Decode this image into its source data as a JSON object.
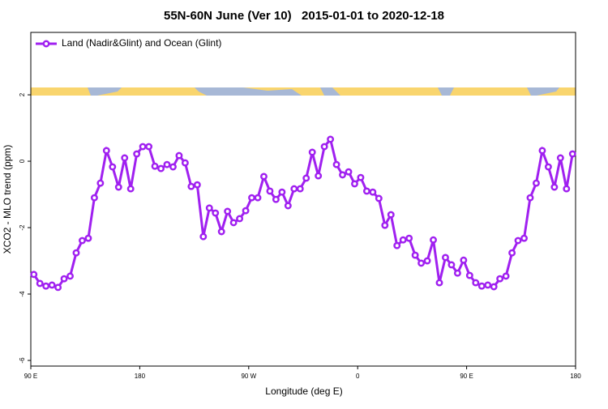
{
  "chart_data": {
    "type": "line",
    "title": "55N-60N June (Ver 10)   2015-01-01 to 2020-12-18",
    "x_label": "Longitude (deg E)",
    "y_label": "XCO2 - MLO trend (ppm)",
    "legend_position": "top-left",
    "xlim": [
      90,
      540
    ],
    "ylim": [
      -6.17,
      3.88
    ],
    "xticks": [
      {
        "value": 90,
        "label": "90 E"
      },
      180,
      {
        "value": 270,
        "label": "90 W"
      },
      {
        "value": 360,
        "label": "0"
      },
      {
        "value": 450,
        "label": "90 E"
      },
      {
        "value": 540,
        "label": "180"
      }
    ],
    "yticks": [
      -6,
      -4,
      -2,
      0,
      2
    ],
    "x": [
      92.5,
      97.5,
      102.5,
      107.5,
      112.5,
      117.5,
      122.5,
      127.5,
      132.5,
      137.5,
      142.5,
      147.5,
      152.5,
      157.5,
      162.5,
      167.5,
      172.5,
      177.5,
      182.5,
      187.5,
      192.5,
      197.5,
      202.5,
      207.5,
      212.5,
      217.5,
      222.5,
      227.5,
      232.5,
      237.5,
      242.5,
      247.5,
      252.5,
      257.5,
      262.5,
      267.5,
      272.5,
      277.5,
      282.5,
      287.5,
      292.5,
      297.5,
      302.5,
      307.5,
      312.5,
      317.5,
      322.5,
      327.5,
      332.5,
      337.5,
      342.5,
      347.5,
      352.5,
      357.5,
      362.5,
      367.5,
      372.5,
      377.5,
      382.5,
      387.5,
      392.5,
      397.5,
      402.5,
      407.5,
      412.5,
      417.5,
      422.5,
      427.5,
      432.5,
      437.5,
      442.5,
      447.5,
      452.5,
      457.5,
      462.5,
      467.5,
      472.5,
      477.5,
      482.5,
      487.5,
      492.5,
      497.5,
      502.5,
      507.5,
      512.5,
      517.5,
      522.5,
      527.5,
      532.5,
      537.5
    ],
    "series": [
      {
        "name": "Land (Nadir&Glint) and Ocean (Glint)",
        "color": "#a020f0",
        "values": [
          -3.41,
          -3.68,
          -3.76,
          -3.73,
          -3.8,
          -3.54,
          -3.46,
          -2.76,
          -2.39,
          -2.32,
          -1.1,
          -0.66,
          0.32,
          -0.17,
          -0.78,
          0.1,
          -0.83,
          0.22,
          0.44,
          0.44,
          -0.15,
          -0.22,
          -0.1,
          -0.17,
          0.17,
          -0.05,
          -0.76,
          -0.71,
          -2.27,
          -1.41,
          -1.56,
          -2.12,
          -1.51,
          -1.85,
          -1.73,
          -1.49,
          -1.1,
          -1.1,
          -0.46,
          -0.9,
          -1.15,
          -0.93,
          -1.34,
          -0.83,
          -0.83,
          -0.51,
          0.27,
          -0.44,
          0.44,
          0.66,
          -0.1,
          -0.41,
          -0.32,
          -0.68,
          -0.49,
          -0.9,
          -0.93,
          -1.12,
          -1.93,
          -1.61,
          -2.54,
          -2.37,
          -2.32,
          -2.83,
          -3.07,
          -3.0,
          -2.37,
          -3.66,
          -2.9,
          -3.12,
          -3.37,
          -2.98,
          -3.44,
          -3.66,
          -3.76,
          -3.73,
          -3.78,
          -3.54,
          -3.46,
          -2.76,
          -2.39,
          -2.32,
          -1.1,
          -0.66,
          0.32,
          -0.17,
          -0.78,
          0.1,
          -0.83,
          0.22
        ]
      }
    ]
  }
}
